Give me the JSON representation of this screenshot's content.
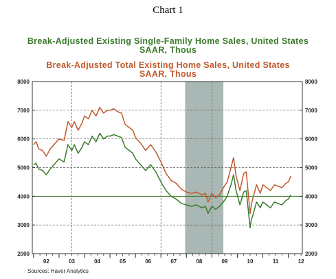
{
  "chart_title": "Chart 1",
  "source": "Sources:  Haver Analytics",
  "chart_data": {
    "type": "line",
    "series_titles": [
      {
        "title": "Break-Adjusted Existing Single-Family Home Sales, United States",
        "units": "SAAR, Thous",
        "color": "#3a7a2a"
      },
      {
        "title": "Break-Adjusted Total Existing Home Sales, United States",
        "units": "SAAR, Thous",
        "color": "#c0582a"
      }
    ],
    "ylim": [
      2000,
      8000
    ],
    "yticks": [
      "2000",
      "3000",
      "4000",
      "5000",
      "6000",
      "7000",
      "8000"
    ],
    "xticks": [
      "02",
      "03",
      "04",
      "05",
      "06",
      "07",
      "08",
      "09",
      "10",
      "11",
      "12"
    ],
    "xlim": [
      2001.95,
      2012.55
    ],
    "vertical_gridlines": [
      2003.5,
      2007.0,
      2009.0
    ],
    "horizontal_gridlines": [
      3000,
      4000,
      5000,
      6000,
      7000
    ],
    "reference_line": 4000,
    "recession_shading": {
      "start": 2007.95,
      "end": 2009.45,
      "color": "#a9b8b4"
    },
    "series": [
      {
        "name": "Single-Family",
        "color": "#3a7a2a",
        "x": [
          2002.0,
          2002.1,
          2002.2,
          2002.35,
          2002.5,
          2002.65,
          2002.8,
          2003.0,
          2003.2,
          2003.35,
          2003.5,
          2003.6,
          2003.75,
          2003.9,
          2004.0,
          2004.15,
          2004.3,
          2004.45,
          2004.6,
          2004.75,
          2004.9,
          2005.0,
          2005.15,
          2005.3,
          2005.45,
          2005.6,
          2005.75,
          2005.9,
          2006.0,
          2006.2,
          2006.4,
          2006.6,
          2006.8,
          2007.0,
          2007.2,
          2007.4,
          2007.6,
          2007.8,
          2008.0,
          2008.2,
          2008.4,
          2008.6,
          2008.75,
          2008.85,
          2009.0,
          2009.15,
          2009.3,
          2009.45,
          2009.6,
          2009.75,
          2009.85,
          2009.95,
          2010.1,
          2010.25,
          2010.35,
          2010.5,
          2010.55,
          2010.6,
          2010.75,
          2010.9,
          2011.0,
          2011.15,
          2011.3,
          2011.45,
          2011.6,
          2011.75,
          2011.9,
          2012.0,
          2012.1
        ],
        "values": [
          5100,
          5150,
          4950,
          4900,
          4750,
          4950,
          5100,
          5300,
          5200,
          5800,
          5600,
          5800,
          5500,
          5700,
          5900,
          5800,
          6100,
          5900,
          6200,
          6000,
          6100,
          6100,
          6150,
          6100,
          6050,
          5700,
          5600,
          5500,
          5300,
          5100,
          4900,
          5100,
          4850,
          4500,
          4200,
          4000,
          3900,
          3750,
          3700,
          3650,
          3700,
          3600,
          3650,
          3400,
          3650,
          3550,
          3650,
          3800,
          4000,
          4400,
          4750,
          4200,
          3700,
          4150,
          4200,
          2900,
          3200,
          3300,
          3800,
          3600,
          3800,
          3700,
          3600,
          3800,
          3750,
          3700,
          3850,
          3900,
          4050
        ]
      },
      {
        "name": "Total",
        "color": "#c0582a",
        "x": [
          2002.0,
          2002.1,
          2002.2,
          2002.35,
          2002.5,
          2002.65,
          2002.8,
          2003.0,
          2003.2,
          2003.35,
          2003.5,
          2003.6,
          2003.75,
          2003.9,
          2004.0,
          2004.15,
          2004.3,
          2004.45,
          2004.6,
          2004.75,
          2004.9,
          2005.0,
          2005.15,
          2005.3,
          2005.45,
          2005.6,
          2005.75,
          2005.9,
          2006.0,
          2006.2,
          2006.4,
          2006.6,
          2006.8,
          2007.0,
          2007.2,
          2007.4,
          2007.6,
          2007.8,
          2008.0,
          2008.2,
          2008.4,
          2008.6,
          2008.75,
          2008.85,
          2009.0,
          2009.15,
          2009.3,
          2009.45,
          2009.6,
          2009.75,
          2009.85,
          2009.95,
          2010.1,
          2010.25,
          2010.35,
          2010.5,
          2010.55,
          2010.6,
          2010.75,
          2010.9,
          2011.0,
          2011.15,
          2011.3,
          2011.45,
          2011.6,
          2011.75,
          2011.9,
          2012.0,
          2012.1
        ],
        "values": [
          5800,
          5900,
          5650,
          5600,
          5400,
          5650,
          5800,
          6000,
          5950,
          6600,
          6400,
          6600,
          6300,
          6550,
          6800,
          6700,
          7000,
          6800,
          7100,
          6900,
          7000,
          7000,
          7050,
          6950,
          6900,
          6500,
          6400,
          6300,
          6050,
          5850,
          5600,
          5800,
          5550,
          5200,
          4800,
          4550,
          4450,
          4250,
          4150,
          4100,
          4150,
          4050,
          4100,
          3800,
          4100,
          3950,
          4050,
          4300,
          4500,
          5000,
          5350,
          4700,
          4200,
          4800,
          4850,
          3400,
          3700,
          3900,
          4400,
          4100,
          4400,
          4300,
          4200,
          4400,
          4350,
          4300,
          4450,
          4500,
          4700
        ]
      }
    ]
  }
}
